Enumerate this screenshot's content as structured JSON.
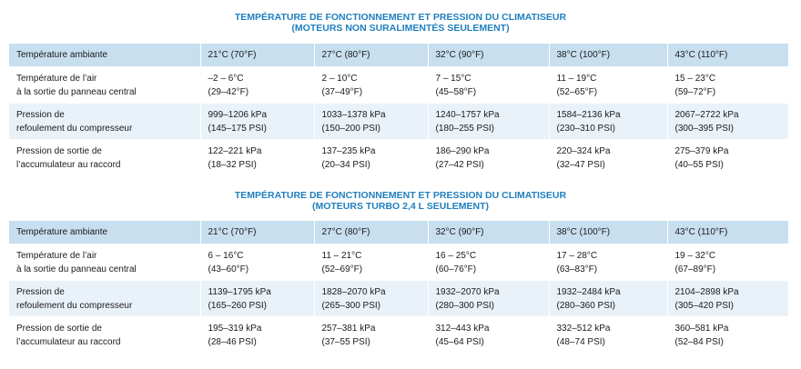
{
  "tables": [
    {
      "title_line1": "TEMPÉRATURE DE FONCTIONNEMENT ET PRESSION DU CLIMATISEUR",
      "title_line2": "(MOTEURS NON SURALIMENTÉS SEULEMENT)",
      "header": [
        "Température ambiante",
        "21°C  (70°F)",
        "27°C  (80°F)",
        "32°C  (90°F)",
        "38°C  (100°F)",
        "43°C  (110°F)"
      ],
      "rows": [
        {
          "label": [
            "Température de l’air",
            "à la sortie du panneau central"
          ],
          "cells": [
            [
              "–2 – 6°C",
              "(29–42°F)"
            ],
            [
              "2 – 10°C",
              "(37–49°F)"
            ],
            [
              "7 – 15°C",
              "(45–58°F)"
            ],
            [
              "11 – 19°C",
              "(52–65°F)"
            ],
            [
              "15 – 23°C",
              "(59–72°F)"
            ]
          ]
        },
        {
          "label": [
            "Pression de",
            "refoulement du compresseur"
          ],
          "cells": [
            [
              "999–1206 kPa",
              "(145–175 PSI)"
            ],
            [
              "1033–1378 kPa",
              "(150–200 PSI)"
            ],
            [
              "1240–1757 kPa",
              "(180–255 PSI)"
            ],
            [
              "1584–2136 kPa",
              "(230–310 PSI)"
            ],
            [
              "2067–2722 kPa",
              "(300–395 PSI)"
            ]
          ]
        },
        {
          "label": [
            "Pression de sortie de",
            "l’accumulateur au raccord"
          ],
          "cells": [
            [
              "122–221 kPa",
              "(18–32 PSI)"
            ],
            [
              "137–235 kPa",
              "(20–34 PSI)"
            ],
            [
              "186–290 kPa",
              "(27–42 PSI)"
            ],
            [
              "220–324 kPa",
              "(32–47 PSI)"
            ],
            [
              "275–379 kPa",
              "(40–55 PSI)"
            ]
          ]
        }
      ]
    },
    {
      "title_line1": "TEMPÉRATURE DE FONCTIONNEMENT ET PRESSION DU CLIMATISEUR",
      "title_line2": "(MOTEURS TURBO 2,4 L SEULEMENT)",
      "header": [
        "Température ambiante",
        "21°C  (70°F)",
        "27°C  (80°F)",
        "32°C  (90°F)",
        "38°C  (100°F)",
        "43°C  (110°F)"
      ],
      "rows": [
        {
          "label": [
            "Température de l’air",
            "à la sortie du panneau central"
          ],
          "cells": [
            [
              "6 – 16°C",
              "(43–60°F)"
            ],
            [
              "11 – 21°C",
              "(52–69°F)"
            ],
            [
              "16 – 25°C",
              "(60–76°F)"
            ],
            [
              "17 – 28°C",
              "(63–83°F)"
            ],
            [
              "19 – 32°C",
              "(67–89°F)"
            ]
          ]
        },
        {
          "label": [
            "Pression de",
            "refoulement du compresseur"
          ],
          "cells": [
            [
              "1139–1795 kPa",
              "(165–260 PSI)"
            ],
            [
              "1828–2070 kPa",
              "(265–300 PSI)"
            ],
            [
              "1932–2070 kPa",
              "(280–300 PSI)"
            ],
            [
              "1932–2484 kPa",
              "(280–360 PSI)"
            ],
            [
              "2104–2898 kPa",
              "(305–420 PSI)"
            ]
          ]
        },
        {
          "label": [
            "Pression de sortie de",
            "l’accumulateur au raccord"
          ],
          "cells": [
            [
              "195–319 kPa",
              "(28–46 PSI)"
            ],
            [
              "257–381 kPa",
              "(37–55 PSI)"
            ],
            [
              "312–443 kPa",
              "(45–64 PSI)"
            ],
            [
              "332–512 kPa",
              "(48–74 PSI)"
            ],
            [
              "360–581 kPa",
              "(52–84 PSI)"
            ]
          ]
        }
      ]
    }
  ]
}
